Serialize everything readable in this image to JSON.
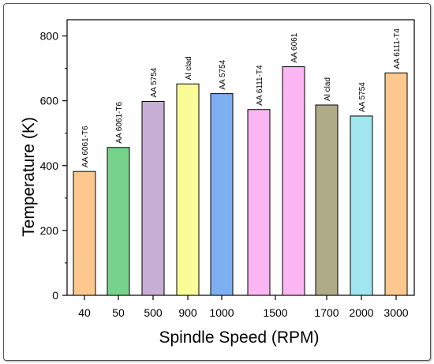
{
  "chart_data": {
    "type": "bar",
    "title": "",
    "xlabel": "Spindle Speed (RPM)",
    "ylabel": "Temperature (K)",
    "ylim": [
      0,
      850
    ],
    "yticks": [
      0,
      200,
      400,
      600,
      800
    ],
    "categories": [
      "40",
      "50",
      "500",
      "900",
      "1000",
      "1500",
      "1500",
      "1700",
      "2000",
      "3000"
    ],
    "tick_labels": [
      "40",
      "50",
      "500",
      "900",
      "1000",
      "1500",
      "1700",
      "2000",
      "3000"
    ],
    "bars": [
      {
        "category": "40",
        "value": 382,
        "label": "AA 6061-T6",
        "color": "#fcc88e"
      },
      {
        "category": "50",
        "value": 456,
        "label": "AA 6061-T6",
        "color": "#77d38b"
      },
      {
        "category": "500",
        "value": 598,
        "label": "AA 5754",
        "color": "#c7aed4"
      },
      {
        "category": "900",
        "value": 652,
        "label": "Al clad",
        "color": "#fafc98"
      },
      {
        "category": "1000",
        "value": 622,
        "label": "AA 5754",
        "color": "#7db0f2"
      },
      {
        "category": "1500",
        "value": 573,
        "label": "AA 6111-T4",
        "color": "#fab5f2"
      },
      {
        "category": "1500",
        "value": 705,
        "label": "AA 6061",
        "color": "#fab5f2"
      },
      {
        "category": "1700",
        "value": 587,
        "label": "Al clad",
        "color": "#afaa88"
      },
      {
        "category": "2000",
        "value": 553,
        "label": "AA 5754",
        "color": "#a1e6ee"
      },
      {
        "category": "3000",
        "value": 686,
        "label": "AA 6111-T4",
        "color": "#fcc88e"
      }
    ]
  }
}
